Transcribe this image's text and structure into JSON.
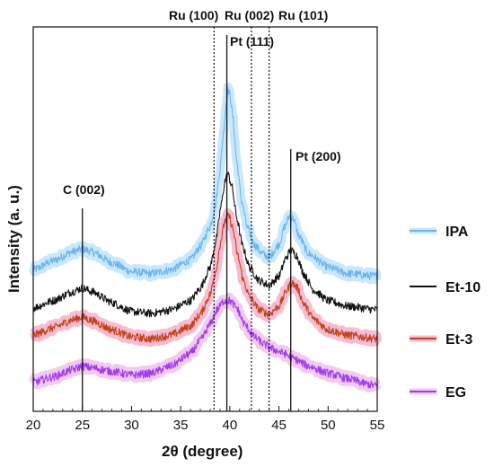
{
  "chart_data": {
    "type": "line",
    "title": "",
    "xlabel": "2θ (degree)",
    "ylabel": "Intensity (a. u.)",
    "xlim": [
      20,
      55
    ],
    "x_ticks": [
      "20",
      "25",
      "30",
      "35",
      "40",
      "45",
      "50",
      "55"
    ],
    "y_ticks_shown": false,
    "grid": false,
    "legend_position": "right",
    "series": [
      {
        "name": "IPA",
        "color": "#6cb4f0",
        "glow": "#c9e8fb",
        "points": [
          [
            20,
            152
          ],
          [
            22,
            162
          ],
          [
            24,
            172
          ],
          [
            25,
            175
          ],
          [
            26,
            172
          ],
          [
            28,
            160
          ],
          [
            30,
            150
          ],
          [
            32,
            148
          ],
          [
            34,
            152
          ],
          [
            36,
            163
          ],
          [
            37,
            178
          ],
          [
            38,
            200
          ],
          [
            38.5,
            222
          ],
          [
            39,
            262
          ],
          [
            39.3,
            298
          ],
          [
            39.6,
            333
          ],
          [
            39.8,
            350
          ],
          [
            40.0,
            346
          ],
          [
            40.3,
            322
          ],
          [
            40.7,
            272
          ],
          [
            41.2,
            228
          ],
          [
            41.8,
            198
          ],
          [
            42.5,
            180
          ],
          [
            43.3,
            170
          ],
          [
            44,
            166
          ],
          [
            45,
            180
          ],
          [
            45.6,
            200
          ],
          [
            46.1,
            212
          ],
          [
            46.5,
            208
          ],
          [
            47,
            190
          ],
          [
            48,
            170
          ],
          [
            50,
            155
          ],
          [
            52,
            148
          ],
          [
            55,
            145
          ]
        ]
      },
      {
        "name": "Et-10",
        "color": "#111111",
        "glow": null,
        "points": [
          [
            20,
            110
          ],
          [
            22,
            118
          ],
          [
            24,
            128
          ],
          [
            25,
            132
          ],
          [
            26,
            128
          ],
          [
            28,
            116
          ],
          [
            30,
            106
          ],
          [
            32,
            104
          ],
          [
            34,
            108
          ],
          [
            36,
            118
          ],
          [
            37,
            132
          ],
          [
            38,
            155
          ],
          [
            38.6,
            185
          ],
          [
            39.1,
            222
          ],
          [
            39.5,
            250
          ],
          [
            39.8,
            258
          ],
          [
            40.2,
            245
          ],
          [
            40.7,
            210
          ],
          [
            41.3,
            178
          ],
          [
            42,
            155
          ],
          [
            43,
            140
          ],
          [
            44,
            135
          ],
          [
            45,
            145
          ],
          [
            45.7,
            165
          ],
          [
            46.2,
            174
          ],
          [
            46.8,
            168
          ],
          [
            47.5,
            148
          ],
          [
            48.5,
            130
          ],
          [
            50,
            118
          ],
          [
            52,
            112
          ],
          [
            55,
            108
          ]
        ]
      },
      {
        "name": "Et-3",
        "color": "#c0421a",
        "glow": "#f7bcd2",
        "points": [
          [
            20,
            80
          ],
          [
            22,
            88
          ],
          [
            24,
            97
          ],
          [
            25,
            100
          ],
          [
            26,
            96
          ],
          [
            28,
            86
          ],
          [
            30,
            78
          ],
          [
            32,
            76
          ],
          [
            34,
            80
          ],
          [
            36,
            90
          ],
          [
            37,
            103
          ],
          [
            38,
            125
          ],
          [
            38.6,
            152
          ],
          [
            39.1,
            185
          ],
          [
            39.5,
            206
          ],
          [
            39.9,
            212
          ],
          [
            40.3,
            198
          ],
          [
            40.8,
            168
          ],
          [
            41.4,
            140
          ],
          [
            42,
            122
          ],
          [
            43,
            108
          ],
          [
            44,
            103
          ],
          [
            45,
            112
          ],
          [
            45.8,
            130
          ],
          [
            46.3,
            138
          ],
          [
            46.9,
            132
          ],
          [
            47.5,
            115
          ],
          [
            48.5,
            98
          ],
          [
            50,
            86
          ],
          [
            52,
            80
          ],
          [
            55,
            76
          ]
        ]
      },
      {
        "name": "EG",
        "color": "#9d3cf0",
        "glow": "#f2c9ef",
        "points": [
          [
            20,
            28
          ],
          [
            22,
            34
          ],
          [
            24,
            42
          ],
          [
            25,
            46
          ],
          [
            26,
            44
          ],
          [
            28,
            40
          ],
          [
            30,
            36
          ],
          [
            32,
            38
          ],
          [
            34,
            46
          ],
          [
            36,
            60
          ],
          [
            37,
            74
          ],
          [
            38,
            92
          ],
          [
            38.7,
            108
          ],
          [
            39.4,
            118
          ],
          [
            40,
            118
          ],
          [
            40.7,
            110
          ],
          [
            41.5,
            92
          ],
          [
            42.5,
            78
          ],
          [
            43.5,
            70
          ],
          [
            44.5,
            64
          ],
          [
            45.5,
            60
          ],
          [
            46.5,
            54
          ],
          [
            48,
            46
          ],
          [
            50,
            38
          ],
          [
            52,
            32
          ],
          [
            54,
            26
          ],
          [
            55,
            24
          ]
        ]
      }
    ],
    "reference_lines": [
      {
        "x": 25.0,
        "style": "solid",
        "label": "C (002)"
      },
      {
        "x": 38.4,
        "style": "dotted",
        "label": "Ru (100)"
      },
      {
        "x": 39.7,
        "style": "solid",
        "label": "Pt (111)"
      },
      {
        "x": 42.2,
        "style": "dotted",
        "label": "Ru (002)"
      },
      {
        "x": 44.0,
        "style": "dotted",
        "label": "Ru (101)"
      },
      {
        "x": 46.2,
        "style": "solid",
        "label": "Pt (200)"
      }
    ]
  }
}
